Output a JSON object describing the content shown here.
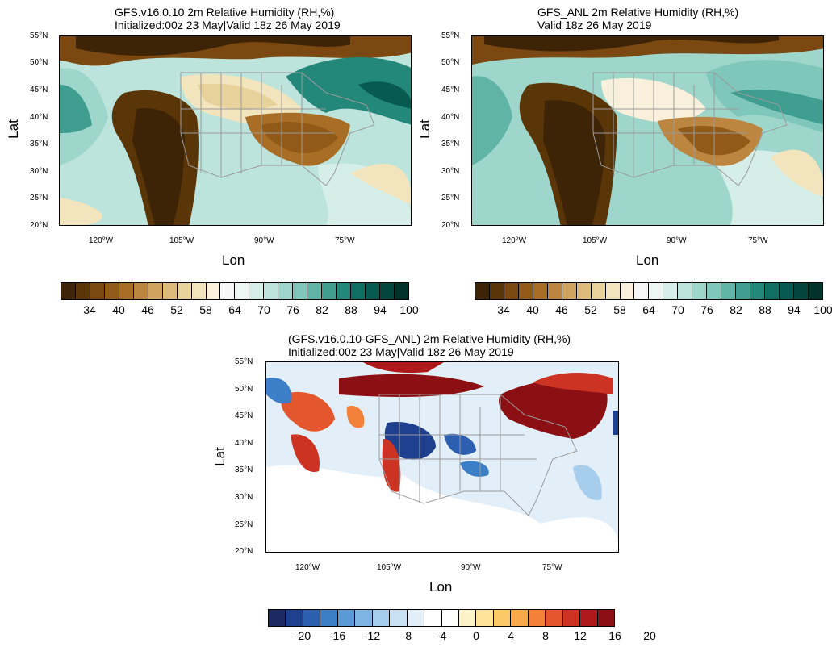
{
  "panels": {
    "left": {
      "title_line1": "GFS.v16.0.10 2m Relative Humidity (RH,%)",
      "title_line2": "Initialized:00z 23 May|Valid 18z 26 May 2019",
      "ylabel": "Lat",
      "xlabel": "Lon"
    },
    "right": {
      "title_line1": "GFS_ANL 2m Relative Humidity (RH,%)",
      "title_line2": "Valid 18z 26 May 2019",
      "ylabel": "Lat",
      "xlabel": "Lon"
    },
    "diff": {
      "title_line1": "(GFS.v16.0.10-GFS_ANL) 2m Relative Humidity (RH,%)",
      "title_line2": "Initialized:00z 23 May|Valid 18z 26 May 2019",
      "ylabel": "Lat",
      "xlabel": "Lon"
    }
  },
  "lat_ticks": [
    "55°N",
    "50°N",
    "45°N",
    "40°N",
    "35°N",
    "30°N",
    "25°N",
    "20°N"
  ],
  "lon_ticks": [
    "120°W",
    "105°W",
    "90°W",
    "75°W"
  ],
  "rh_colorbar": {
    "labels": [
      "34",
      "40",
      "46",
      "52",
      "58",
      "64",
      "70",
      "76",
      "82",
      "88",
      "94",
      "100"
    ],
    "colors": [
      "#3d2406",
      "#5a3508",
      "#7a4810",
      "#925a18",
      "#a86e26",
      "#bd8640",
      "#cfa45e",
      "#dcbb7c",
      "#e8d29c",
      "#f2e4bc",
      "#f8f0da",
      "#f7f7f7",
      "#eef6f3",
      "#d6eee8",
      "#bde4dc",
      "#9ed6cc",
      "#7fc7ba",
      "#5fb4a6",
      "#3f9e90",
      "#23877a",
      "#0f6f63",
      "#065a50",
      "#03463e",
      "#01332b"
    ]
  },
  "diff_colorbar": {
    "labels": [
      "-20",
      "-16",
      "-12",
      "-8",
      "-4",
      "0",
      "4",
      "8",
      "12",
      "16",
      "20"
    ],
    "colors": [
      "#1b2a63",
      "#1f3f8f",
      "#2c5fb0",
      "#3d7fc6",
      "#5a9ad6",
      "#7fb5e2",
      "#a6cdec",
      "#c8e0f2",
      "#e3eff8",
      "#ffffff",
      "#ffffff",
      "#fdf3c8",
      "#fde49a",
      "#fcc96a",
      "#f9a84a",
      "#f3813a",
      "#e4572e",
      "#cc3322",
      "#b0191c",
      "#8c0f14"
    ]
  },
  "map_colors": {
    "rh_dry": "#5a3508",
    "rh_moist": "#0f6f63",
    "diff_positive": "#b0191c",
    "diff_negative": "#1f3f8f",
    "state_lines": "#9a9a9a"
  }
}
